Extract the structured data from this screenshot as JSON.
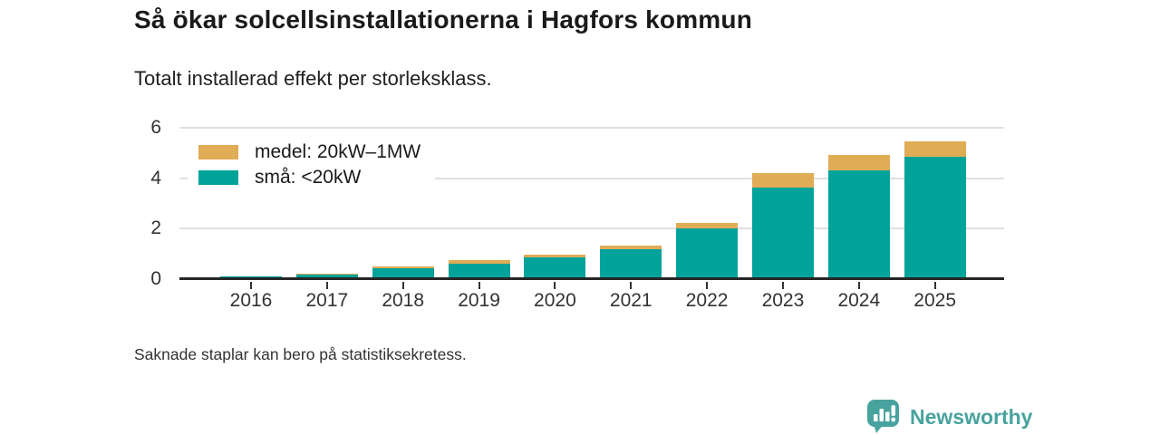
{
  "header": {
    "title": "Så ökar solcellsinstallationerna i Hagfors kommun",
    "subtitle": "Totalt installerad effekt per storleksklass."
  },
  "chart_data": {
    "type": "bar",
    "stacked": true,
    "title": "Så ökar solcellsinstallationerna i Hagfors kommun",
    "subtitle": "Totalt installerad effekt per storleksklass.",
    "categories": [
      "2016",
      "2017",
      "2018",
      "2019",
      "2020",
      "2021",
      "2022",
      "2023",
      "2024",
      "2025"
    ],
    "series": [
      {
        "name": "små: <20kW",
        "color": "#00a39a",
        "values": [
          0.1,
          0.2,
          0.42,
          0.62,
          0.87,
          1.17,
          2.02,
          3.65,
          4.32,
          4.85
        ]
      },
      {
        "name": "medel: 20kW–1MW",
        "color": "#e0ac55",
        "values": [
          0.0,
          0.03,
          0.1,
          0.15,
          0.1,
          0.15,
          0.22,
          0.57,
          0.62,
          0.63
        ]
      }
    ],
    "legend": [
      {
        "label": "medel: 20kW–1MW",
        "color": "#e0ac55"
      },
      {
        "label": "små: <20kW",
        "color": "#00a39a"
      }
    ],
    "legend_position": "top-left",
    "xlabel": "",
    "ylabel": "",
    "yticks": [
      0,
      2,
      4,
      6
    ],
    "ylim": [
      0,
      6.5
    ],
    "grid": true,
    "gridline_color": "#e0e0e0",
    "axis_color": "#262626"
  },
  "footer": {
    "note": "Saknade staplar kan bero på statistiksekretess."
  },
  "branding": {
    "logo_text": "Newsworthy",
    "logo_color": "#48a39e",
    "logo_icon": "bar-chart-speech-bubble"
  }
}
